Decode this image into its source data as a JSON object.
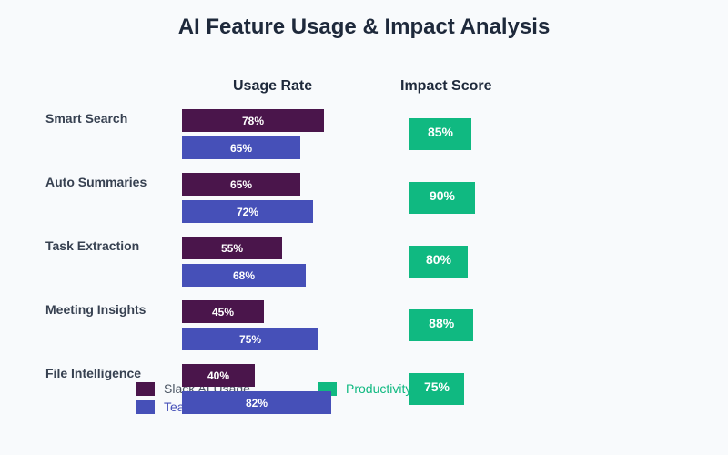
{
  "chart_data": {
    "type": "bar",
    "title": "AI Feature Usage & Impact Analysis",
    "column_titles": [
      "Usage Rate",
      "Impact Score"
    ],
    "categories": [
      "Smart Search",
      "Auto Summaries",
      "Task Extraction",
      "Meeting Insights",
      "File Intelligence"
    ],
    "series": [
      {
        "name": "Slack AI Usage",
        "values": [
          78,
          65,
          55,
          45,
          40
        ],
        "color": "#4a154b"
      },
      {
        "name": "Tea",
        "values": [
          65,
          72,
          68,
          75,
          82
        ],
        "color": "#4650b8"
      },
      {
        "name": "Productivity",
        "values": [
          85,
          90,
          80,
          88,
          75
        ],
        "color": "#10b981"
      }
    ],
    "unit": "%",
    "xlim": [
      0,
      100
    ]
  }
}
